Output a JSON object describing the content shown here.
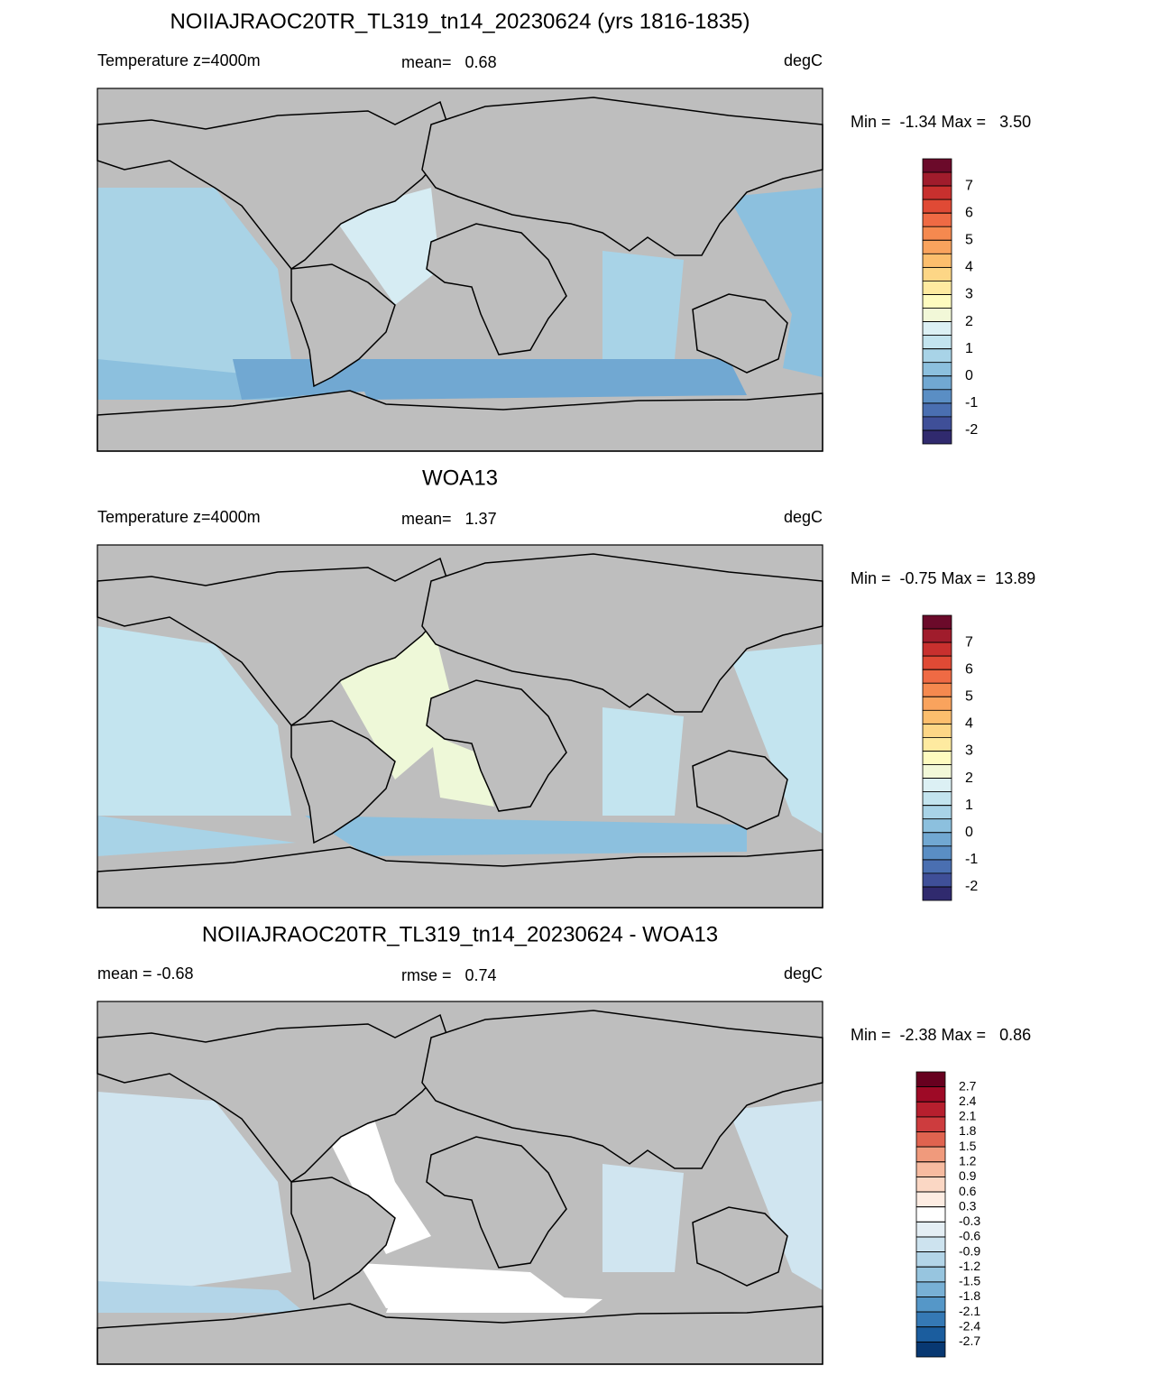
{
  "panels": [
    {
      "title": "NOIIAJRAOC20TR_TL319_tn14_20230624 (yrs 1816-1835)",
      "left_label": "Temperature z=4000m",
      "center_label": "mean=   0.68",
      "units": "degC",
      "min_max": "Min =  -1.34 Max =   3.50",
      "colorbar": {
        "labels": [
          7,
          6,
          5,
          4,
          3,
          2,
          1,
          0,
          -1,
          -2
        ],
        "colors": [
          "#6b0a2a",
          "#a01c2c",
          "#c8302e",
          "#e04a35",
          "#ef6a44",
          "#f5894f",
          "#f9a35d",
          "#fcbe6d",
          "#fdd686",
          "#feeaa0",
          "#fefbbf",
          "#f2f8d8",
          "#dcf0f4",
          "#c3e4ef",
          "#a8d3e7",
          "#8cc0de",
          "#71a8d2",
          "#5a8ec4",
          "#4a6fb1",
          "#3f4f98",
          "#302a6e"
        ]
      }
    },
    {
      "title": "WOA13",
      "left_label": "Temperature z=4000m",
      "center_label": "mean=   1.37",
      "units": "degC",
      "min_max": "Min =  -0.75 Max =  13.89",
      "colorbar": {
        "labels": [
          7,
          6,
          5,
          4,
          3,
          2,
          1,
          0,
          -1,
          -2
        ],
        "colors": [
          "#6b0a2a",
          "#a01c2c",
          "#c8302e",
          "#e04a35",
          "#ef6a44",
          "#f5894f",
          "#f9a35d",
          "#fcbe6d",
          "#fdd686",
          "#feeaa0",
          "#fefbbf",
          "#f2f8d8",
          "#dcf0f4",
          "#c3e4ef",
          "#a8d3e7",
          "#8cc0de",
          "#71a8d2",
          "#5a8ec4",
          "#4a6fb1",
          "#3f4f98",
          "#302a6e"
        ]
      }
    },
    {
      "title": "NOIIAJRAOC20TR_TL319_tn14_20230624 - WOA13",
      "left_label": "mean =  -0.68",
      "center_label": "rmse =   0.74",
      "units": "degC",
      "min_max": "Min =  -2.38 Max =   0.86",
      "colorbar": {
        "labels": [
          2.7,
          2.4,
          2.1,
          1.8,
          1.5,
          1.2,
          0.9,
          0.6,
          0.3,
          -0.3,
          -0.6,
          -0.9,
          -1.2,
          -1.5,
          -1.8,
          -2.1,
          -2.4,
          -2.7
        ],
        "colors": [
          "#67001f",
          "#9e0a26",
          "#b61f2e",
          "#cd3c3e",
          "#e0634f",
          "#f09a7c",
          "#f7bba0",
          "#fbd7c4",
          "#fdece2",
          "#ffffff",
          "#e4eef4",
          "#cde3ef",
          "#b3d5e8",
          "#97c5df",
          "#78b0d5",
          "#5597c8",
          "#3579b5",
          "#1b5d9e",
          "#083872"
        ]
      }
    }
  ]
}
